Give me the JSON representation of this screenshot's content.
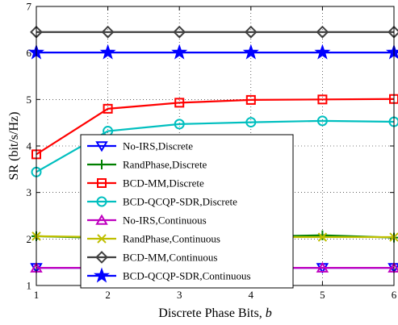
{
  "chart_data": {
    "type": "line",
    "xlabel": "Discrete Phase Bits, ",
    "xlabel_var": "b",
    "ylabel": "SR (bit/s/Hz)",
    "xlim": [
      1,
      6
    ],
    "ylim": [
      1,
      7
    ],
    "x_ticks": [
      1,
      2,
      3,
      4,
      5,
      6
    ],
    "y_ticks": [
      1,
      2,
      3,
      4,
      5,
      6,
      7
    ],
    "grid": true,
    "legend_position": "center",
    "x": [
      1,
      2,
      3,
      4,
      5,
      6
    ],
    "series": [
      {
        "name": "No-IRS,Discrete",
        "color": "#0000ff",
        "marker": "triangle-down",
        "values": [
          1.38,
          1.38,
          1.38,
          1.38,
          1.38,
          1.38
        ]
      },
      {
        "name": "RandPhase,Discrete",
        "color": "#007f00",
        "marker": "plus",
        "values": [
          2.06,
          2.02,
          2.04,
          2.05,
          2.08,
          2.03
        ]
      },
      {
        "name": "BCD-MM,Discrete",
        "color": "#ff0000",
        "marker": "square",
        "values": [
          3.82,
          4.8,
          4.93,
          4.99,
          5.0,
          5.01
        ]
      },
      {
        "name": "BCD-QCQP-SDR,Discrete",
        "color": "#00bfbf",
        "marker": "circle",
        "values": [
          3.44,
          4.32,
          4.47,
          4.51,
          4.54,
          4.52
        ]
      },
      {
        "name": "No-IRS,Continuous",
        "color": "#bf00bf",
        "marker": "triangle-up",
        "values": [
          1.38,
          1.38,
          1.38,
          1.38,
          1.38,
          1.38
        ]
      },
      {
        "name": "RandPhase,Continuous",
        "color": "#bfbf00",
        "marker": "x",
        "values": [
          2.06,
          2.04,
          2.04,
          2.04,
          2.04,
          2.04
        ]
      },
      {
        "name": "BCD-MM,Continuous",
        "color": "#404040",
        "marker": "diamond",
        "values": [
          6.45,
          6.45,
          6.45,
          6.45,
          6.45,
          6.45
        ]
      },
      {
        "name": "BCD-QCQP-SDR,Continuous",
        "color": "#0000ff",
        "marker": "star",
        "values": [
          6.01,
          6.01,
          6.01,
          6.01,
          6.01,
          6.01
        ]
      }
    ]
  }
}
